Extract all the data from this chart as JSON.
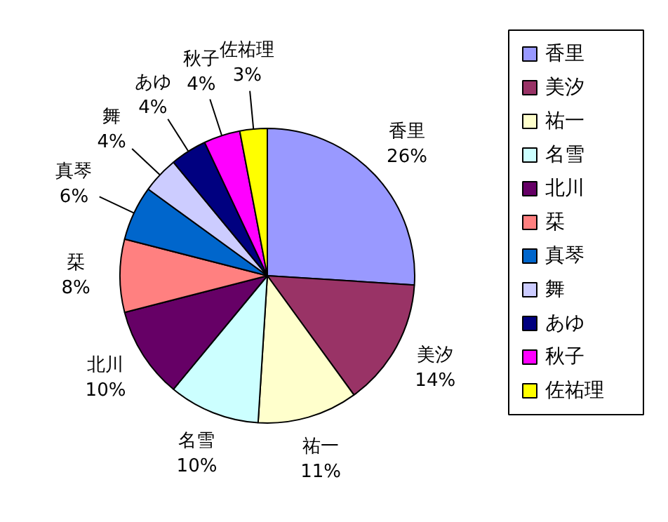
{
  "chart_data": {
    "type": "pie",
    "categories": [
      "香里",
      "美汐",
      "祐一",
      "名雪",
      "北川",
      "栞",
      "真琴",
      "舞",
      "あゆ",
      "秋子",
      "佐祐理"
    ],
    "values": [
      26,
      14,
      11,
      10,
      10,
      8,
      6,
      4,
      4,
      4,
      3
    ],
    "value_labels": [
      "26%",
      "14%",
      "11%",
      "10%",
      "10%",
      "8%",
      "6%",
      "4%",
      "4%",
      "4%",
      "3%"
    ],
    "colors": [
      "#9999ff",
      "#993366",
      "#ffffcc",
      "#ccffff",
      "#660066",
      "#ff8080",
      "#0066cc",
      "#ccccff",
      "#000080",
      "#ff00ff",
      "#ffff00"
    ],
    "legend": "right"
  }
}
